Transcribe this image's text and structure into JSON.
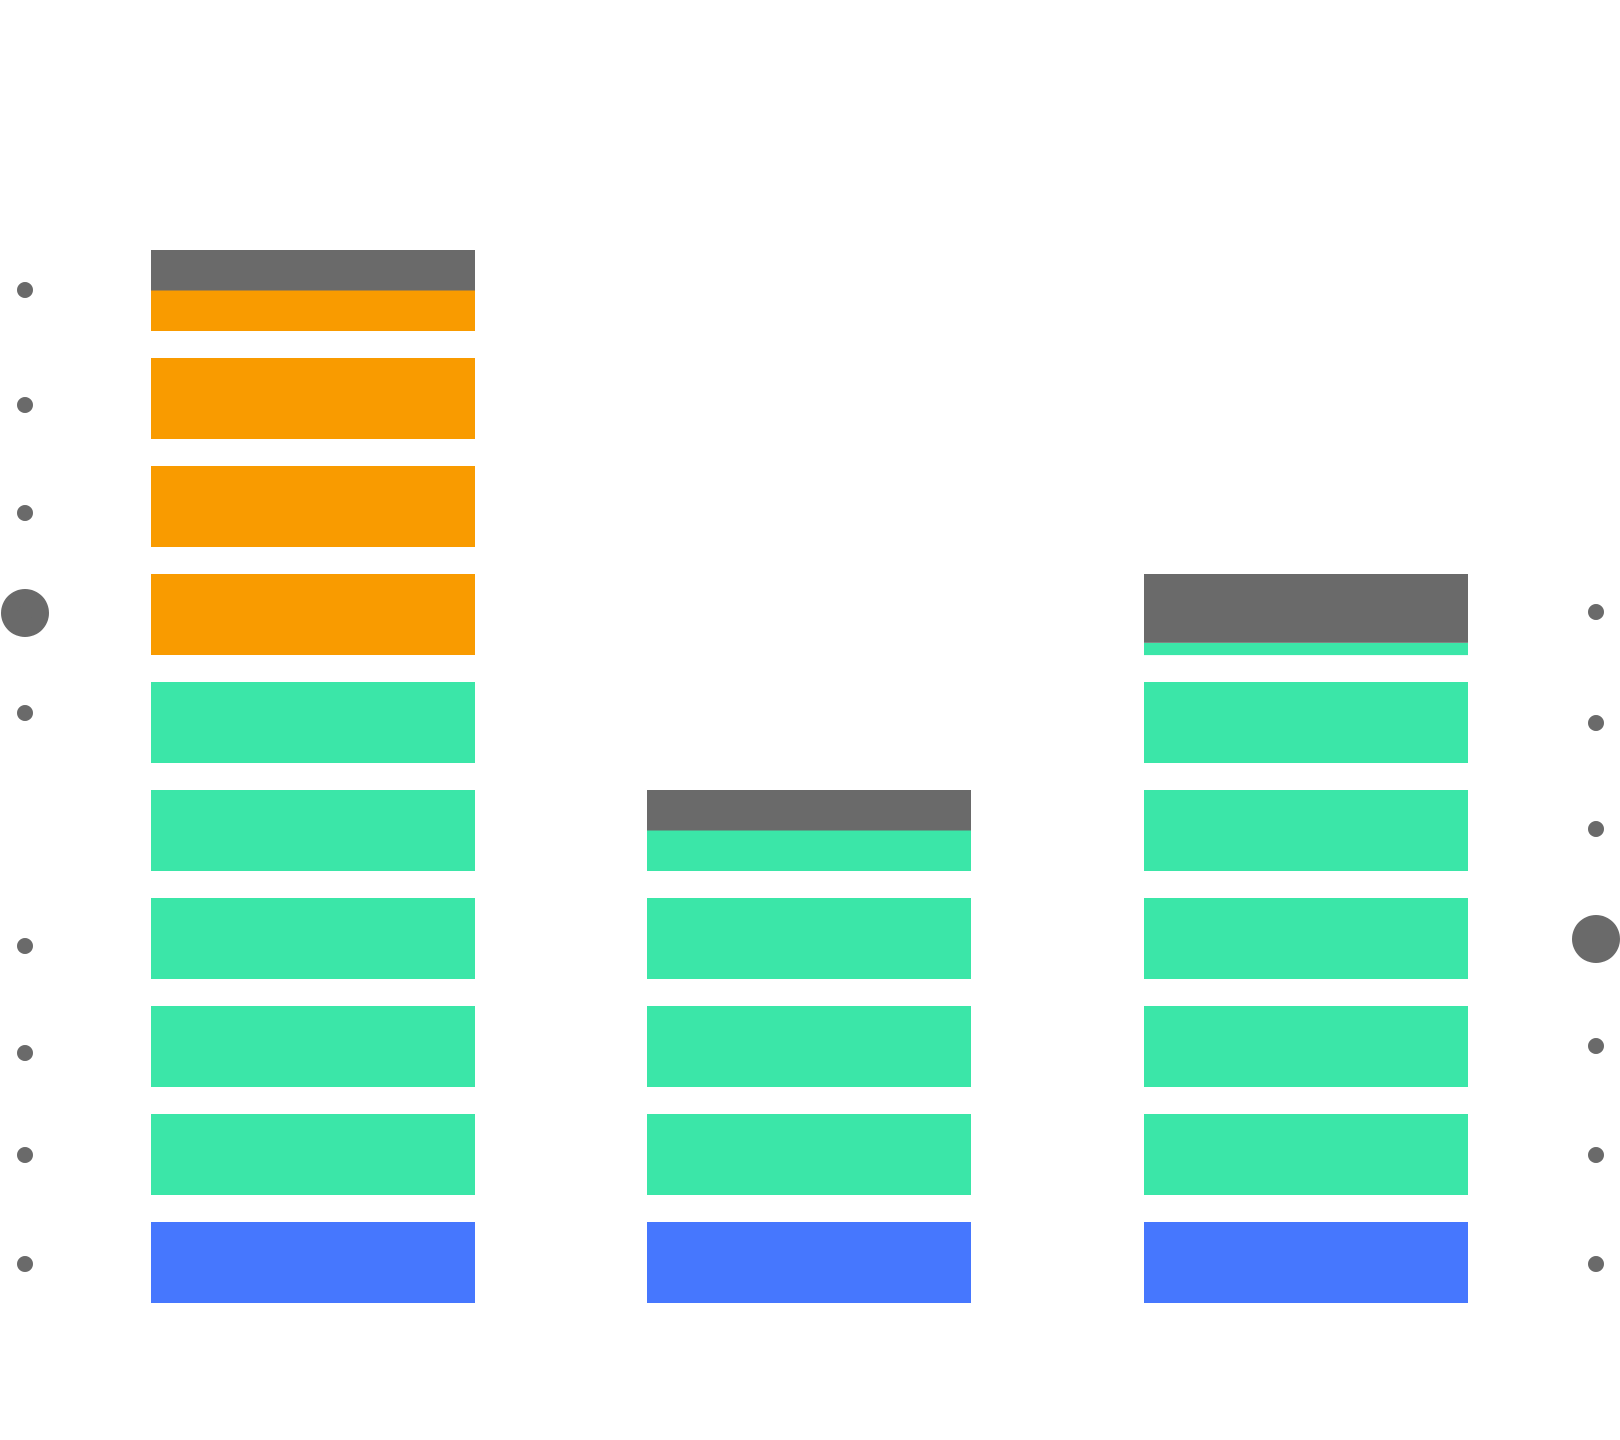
{
  "palette": {
    "blue": "#4677fe",
    "green": "#3be6a8",
    "orange": "#f99b00",
    "gray": "#6a6a6a"
  },
  "columns": [
    {
      "name": "column-left",
      "stack": [
        {
          "color": "blue",
          "fill": 1
        },
        {
          "color": "green",
          "fill": 1
        },
        {
          "color": "green",
          "fill": 1
        },
        {
          "color": "green",
          "fill": 1
        },
        {
          "color": "green",
          "fill": 1
        },
        {
          "color": "green",
          "fill": 1
        },
        {
          "color": "orange",
          "fill": 1
        },
        {
          "color": "orange",
          "fill": 1
        },
        {
          "color": "orange",
          "fill": 1
        },
        {
          "color": "orange",
          "fill": 0.5
        }
      ],
      "cap": {
        "color": "gray",
        "fill": 0.5
      }
    },
    {
      "name": "column-middle",
      "stack": [
        {
          "color": "blue",
          "fill": 1
        },
        {
          "color": "green",
          "fill": 1
        },
        {
          "color": "green",
          "fill": 1
        },
        {
          "color": "green",
          "fill": 1
        },
        {
          "color": "green",
          "fill": 0.5
        }
      ],
      "cap": {
        "color": "gray",
        "fill": 0.5
      }
    },
    {
      "name": "column-right",
      "stack": [
        {
          "color": "blue",
          "fill": 1
        },
        {
          "color": "green",
          "fill": 1
        },
        {
          "color": "green",
          "fill": 1
        },
        {
          "color": "green",
          "fill": 1
        },
        {
          "color": "green",
          "fill": 1
        },
        {
          "color": "green",
          "fill": 1
        },
        {
          "color": "green",
          "fill": 0.15
        }
      ],
      "cap": {
        "color": "gray",
        "fill": 0.85
      }
    }
  ],
  "markers": {
    "left": {
      "count": 10,
      "highlighted": 4
    },
    "right": {
      "count": 7,
      "highlighted": 3
    }
  }
}
